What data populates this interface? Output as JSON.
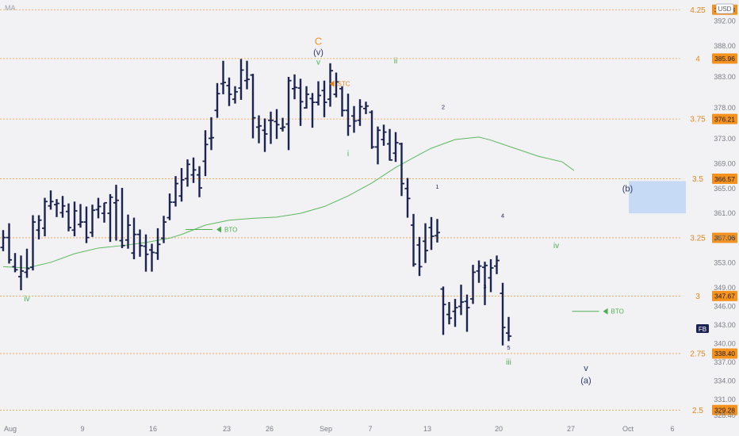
{
  "indicator_label": "MA",
  "currency": "USD",
  "ticker": "FB",
  "top_price_label": "393.83",
  "chart_data": {
    "type": "ohlc",
    "ylim": [
      327.4,
      395.4
    ],
    "y_ticks": [
      392,
      388,
      383,
      378,
      373,
      369,
      365,
      361,
      357,
      353,
      349,
      346,
      343,
      340,
      337,
      334,
      331,
      328.4
    ],
    "x_ticks": [
      {
        "label": "Aug",
        "index": 0
      },
      {
        "label": "9",
        "index": 7
      },
      {
        "label": "16",
        "index": 12
      },
      {
        "label": "23",
        "index": 17
      },
      {
        "label": "26",
        "index": 20
      },
      {
        "label": "Sep",
        "index": 24
      },
      {
        "label": "7",
        "index": 28
      },
      {
        "label": "13",
        "index": 32
      },
      {
        "label": "20",
        "index": 37
      },
      {
        "label": "27",
        "index": 42
      },
      {
        "label": "Oct",
        "index": 47
      },
      {
        "label": "6",
        "index": 51
      }
    ],
    "bars": [
      [
        0,
        354.9,
        358.3,
        355.5,
        357.1
      ],
      [
        1,
        352.9,
        359.4,
        357.1,
        353.5
      ],
      [
        2,
        351.5,
        354.6,
        352.4,
        351.9
      ],
      [
        3,
        348.6,
        354.2,
        350.8,
        351.7
      ],
      [
        4,
        350.6,
        355.3,
        351.5,
        352.1
      ],
      [
        5,
        351.8,
        360.7,
        352.3,
        359.6
      ],
      [
        6,
        356.8,
        360.7,
        358.3,
        359.9
      ],
      [
        7,
        357.3,
        363.5,
        358.6,
        362.9
      ],
      [
        8,
        361.6,
        364.7,
        362.2,
        362.9
      ],
      [
        9,
        360.4,
        363.3,
        362.4,
        362.6
      ],
      [
        10,
        360.3,
        363.8,
        361.1,
        362.2
      ],
      [
        11,
        358.1,
        362.6,
        361.3,
        358.7
      ],
      [
        12,
        357.3,
        362.9,
        358.3,
        361.4
      ],
      [
        13,
        358.7,
        362.5,
        359.2,
        359.6
      ],
      [
        14,
        356.2,
        362.1,
        359.6,
        357.1
      ],
      [
        15,
        357.2,
        362.4,
        357.9,
        361.5
      ],
      [
        16,
        360.2,
        363.5,
        361.6,
        362.1
      ],
      [
        17,
        359.5,
        362.7,
        361.0,
        362.7
      ],
      [
        18,
        356.4,
        364.1,
        361.0,
        363.6
      ],
      [
        19,
        356.6,
        365.6,
        362.7,
        363.1
      ],
      [
        20,
        355.4,
        365.1,
        356.6,
        355.8
      ],
      [
        21,
        355.3,
        360.8,
        356.7,
        359.1
      ],
      [
        22,
        353.6,
        360.3,
        354.6,
        357.6
      ],
      [
        23,
        354.0,
        358.4,
        357.6,
        355.8
      ],
      [
        24,
        351.6,
        357.6,
        355.7,
        354.4
      ],
      [
        25,
        351.6,
        356.1,
        355.1,
        354.7
      ],
      [
        26,
        353.5,
        358.6,
        354.6,
        356.0
      ],
      [
        27,
        356.2,
        360.6,
        357.0,
        359.6
      ],
      [
        28,
        359.9,
        364.2,
        360.3,
        362.8
      ],
      [
        29,
        362.1,
        367.0,
        362.8,
        365.8
      ],
      [
        30,
        362.9,
        368.3,
        363.8,
        366.4
      ],
      [
        31,
        365.3,
        369.7,
        366.6,
        368.9
      ],
      [
        32,
        365.9,
        370.0,
        367.2,
        368.0
      ],
      [
        33,
        363.6,
        368.6,
        367.2,
        365.1
      ],
      [
        34,
        367.0,
        374.4,
        369.4,
        372.1
      ],
      [
        35,
        371.2,
        376.5,
        373.1,
        373.2
      ],
      [
        36,
        376.4,
        382.0,
        377.6,
        380.3
      ],
      [
        37,
        380.2,
        385.6,
        381.9,
        382.1
      ],
      [
        38,
        378.3,
        382.9,
        381.6,
        380.2
      ],
      [
        39,
        378.7,
        381.5,
        379.4,
        380.6
      ],
      [
        40,
        379.3,
        385.9,
        381.2,
        384.1
      ],
      [
        41,
        381.0,
        385.6,
        382.4,
        382.6
      ],
      [
        42,
        373.1,
        383.5,
        383.3,
        376.4
      ],
      [
        43,
        372.3,
        376.8,
        374.9,
        375.1
      ],
      [
        44,
        370.9,
        376.3,
        374.4,
        373.8
      ],
      [
        45,
        372.2,
        377.4,
        376.0,
        376.0
      ],
      [
        46,
        373.0,
        377.8,
        375.8,
        375.3
      ],
      [
        47,
        374.2,
        376.4,
        374.7,
        374.9
      ],
      [
        48,
        371.2,
        383.0,
        375.4,
        382.4
      ],
      [
        49,
        379.4,
        383.4,
        381.1,
        381.3
      ],
      [
        50,
        375.1,
        382.7,
        381.2,
        379.0
      ],
      [
        51,
        377.9,
        381.5,
        378.0,
        380.2
      ],
      [
        52,
        374.8,
        380.4,
        379.5,
        378.9
      ],
      [
        53,
        378.4,
        382.3,
        378.9,
        380.0
      ],
      [
        54,
        376.5,
        382.4,
        380.8,
        378.9
      ],
      [
        55,
        378.2,
        385.2,
        379.4,
        384.0
      ],
      [
        56,
        379.7,
        383.7,
        380.2,
        382.2
      ],
      [
        57,
        376.6,
        381.5,
        381.1,
        377.6
      ],
      [
        58,
        373.5,
        380.3,
        377.6,
        375.1
      ],
      [
        59,
        374.0,
        378.3,
        376.7,
        375.9
      ],
      [
        60,
        375.1,
        379.4,
        376.0,
        378.2
      ],
      [
        61,
        377.0,
        379.0,
        377.9,
        378.3
      ],
      [
        62,
        371.4,
        377.6,
        377.3,
        371.7
      ],
      [
        63,
        368.9,
        375.0,
        371.7,
        374.4
      ],
      [
        64,
        371.9,
        375.3,
        372.9,
        374.1
      ],
      [
        65,
        369.5,
        374.6,
        372.2,
        369.6
      ],
      [
        66,
        369.3,
        374.1,
        370.7,
        372.4
      ],
      [
        67,
        363.8,
        372.4,
        372.2,
        365.8
      ],
      [
        68,
        360.3,
        366.7,
        365.0,
        363.4
      ],
      [
        69,
        352.4,
        360.9,
        359.1,
        352.8
      ],
      [
        70,
        350.9,
        357.2,
        355.9,
        352.4
      ],
      [
        71,
        353.0,
        359.4,
        356.5,
        355.0
      ],
      [
        72,
        355.1,
        360.4,
        358.7,
        357.3
      ],
      [
        73,
        356.3,
        360.1,
        357.4,
        357.9
      ],
      [
        74,
        341.4,
        349.2,
        348.8,
        346.3
      ],
      [
        75,
        343.1,
        346.7,
        344.7,
        344.1
      ],
      [
        76,
        342.7,
        347.2,
        345.2,
        345.8
      ],
      [
        77,
        344.6,
        349.5,
        346.0,
        346.7
      ],
      [
        78,
        341.9,
        347.9,
        346.8,
        345.8
      ],
      [
        79,
        346.4,
        352.7,
        347.2,
        351.5
      ],
      [
        80,
        349.8,
        353.4,
        351.7,
        352.5
      ],
      [
        81,
        346.2,
        353.2,
        352.3,
        352.6
      ],
      [
        82,
        348.3,
        353.6,
        350.6,
        352.2
      ],
      [
        83,
        351.2,
        354.2,
        352.5,
        353.4
      ],
      [
        84,
        339.7,
        349.8,
        348.1,
        342.6
      ],
      [
        85,
        340.4,
        344.3,
        341.7,
        341.2
      ]
    ],
    "moving_average": [
      [
        0,
        352.4
      ],
      [
        4,
        352.2
      ],
      [
        8,
        353.1
      ],
      [
        12,
        354.5
      ],
      [
        16,
        355.4
      ],
      [
        20,
        355.8
      ],
      [
        24,
        356.3
      ],
      [
        28,
        357.0
      ],
      [
        30,
        357.6
      ],
      [
        34,
        359.1
      ],
      [
        38,
        359.9
      ],
      [
        42,
        360.2
      ],
      [
        46,
        360.4
      ],
      [
        50,
        361.0
      ],
      [
        54,
        362.1
      ],
      [
        58,
        363.8
      ],
      [
        62,
        365.9
      ],
      [
        66,
        368.4
      ],
      [
        70,
        370.5
      ],
      [
        72,
        371.5
      ],
      [
        76,
        372.9
      ],
      [
        80,
        373.3
      ],
      [
        82,
        372.8
      ],
      [
        86,
        371.5
      ],
      [
        90,
        370.2
      ],
      [
        94,
        369.3
      ],
      [
        96,
        367.9
      ]
    ],
    "fib_levels": [
      {
        "ratio": "4.25",
        "price_label": "393.83",
        "price": 393.83
      },
      {
        "ratio": "4",
        "price_label": "385.96",
        "price": 385.96
      },
      {
        "ratio": "3.75",
        "price_label": "376.21",
        "price": 376.21
      },
      {
        "ratio": "3.5",
        "price_label": "366.57",
        "price": 366.57
      },
      {
        "ratio": "3.25",
        "price_label": "357.06",
        "price": 357.06
      },
      {
        "ratio": "3",
        "price_label": "347.67",
        "price": 347.67
      },
      {
        "ratio": "2.75",
        "price_label": "338.40",
        "price": 338.4
      },
      {
        "ratio": "2.5",
        "price_label": "329.28",
        "price": 329.28
      }
    ],
    "wave_labels": [
      {
        "text": "iv",
        "index": 4,
        "price": 346.8,
        "color": "green"
      },
      {
        "text": "C",
        "index": 53,
        "price": 388.2,
        "color": "orange"
      },
      {
        "text": "(v)",
        "index": 53,
        "price": 386.5,
        "color": "navy-outline"
      },
      {
        "text": "v",
        "index": 53,
        "price": 385.0,
        "color": "green"
      },
      {
        "text": "ii",
        "index": 66,
        "price": 385.2,
        "color": "green"
      },
      {
        "text": "i",
        "index": 58,
        "price": 370.2,
        "color": "green"
      },
      {
        "text": "2",
        "index": 74,
        "price": 377.8,
        "color": "navy"
      },
      {
        "text": "1",
        "index": 73,
        "price": 365.0,
        "color": "navy"
      },
      {
        "text": "4",
        "index": 84,
        "price": 360.3,
        "color": "navy"
      },
      {
        "text": "3",
        "index": 81,
        "price": 348.9,
        "color": "navy"
      },
      {
        "text": "5",
        "index": 85,
        "price": 339.0,
        "color": "navy"
      },
      {
        "text": "iii",
        "index": 85,
        "price": 336.6,
        "color": "green"
      },
      {
        "text": "iv",
        "index": 93,
        "price": 355.4,
        "color": "green"
      },
      {
        "text": "v",
        "index": 98,
        "price": 335.6,
        "color": "navy-outline"
      },
      {
        "text": "(a)",
        "index": 98,
        "price": 333.6,
        "color": "navy-outline"
      },
      {
        "text": "(b)",
        "index": 105,
        "price": 364.5,
        "color": "navy-outline"
      }
    ],
    "annotations": [
      {
        "text": "STC",
        "index": 55,
        "price": 381.9,
        "color": "orange",
        "direction": "left"
      },
      {
        "text": "BTO",
        "index": 36,
        "price": 358.4,
        "color": "green",
        "direction": "left"
      },
      {
        "text": "BTO",
        "index": 101,
        "price": 345.2,
        "color": "green",
        "direction": "left"
      }
    ],
    "target_zone": {
      "label": "(b)",
      "x_start_index": 101,
      "x_end_index": 109,
      "price_low": 361.0,
      "price_high": 366.2
    }
  }
}
